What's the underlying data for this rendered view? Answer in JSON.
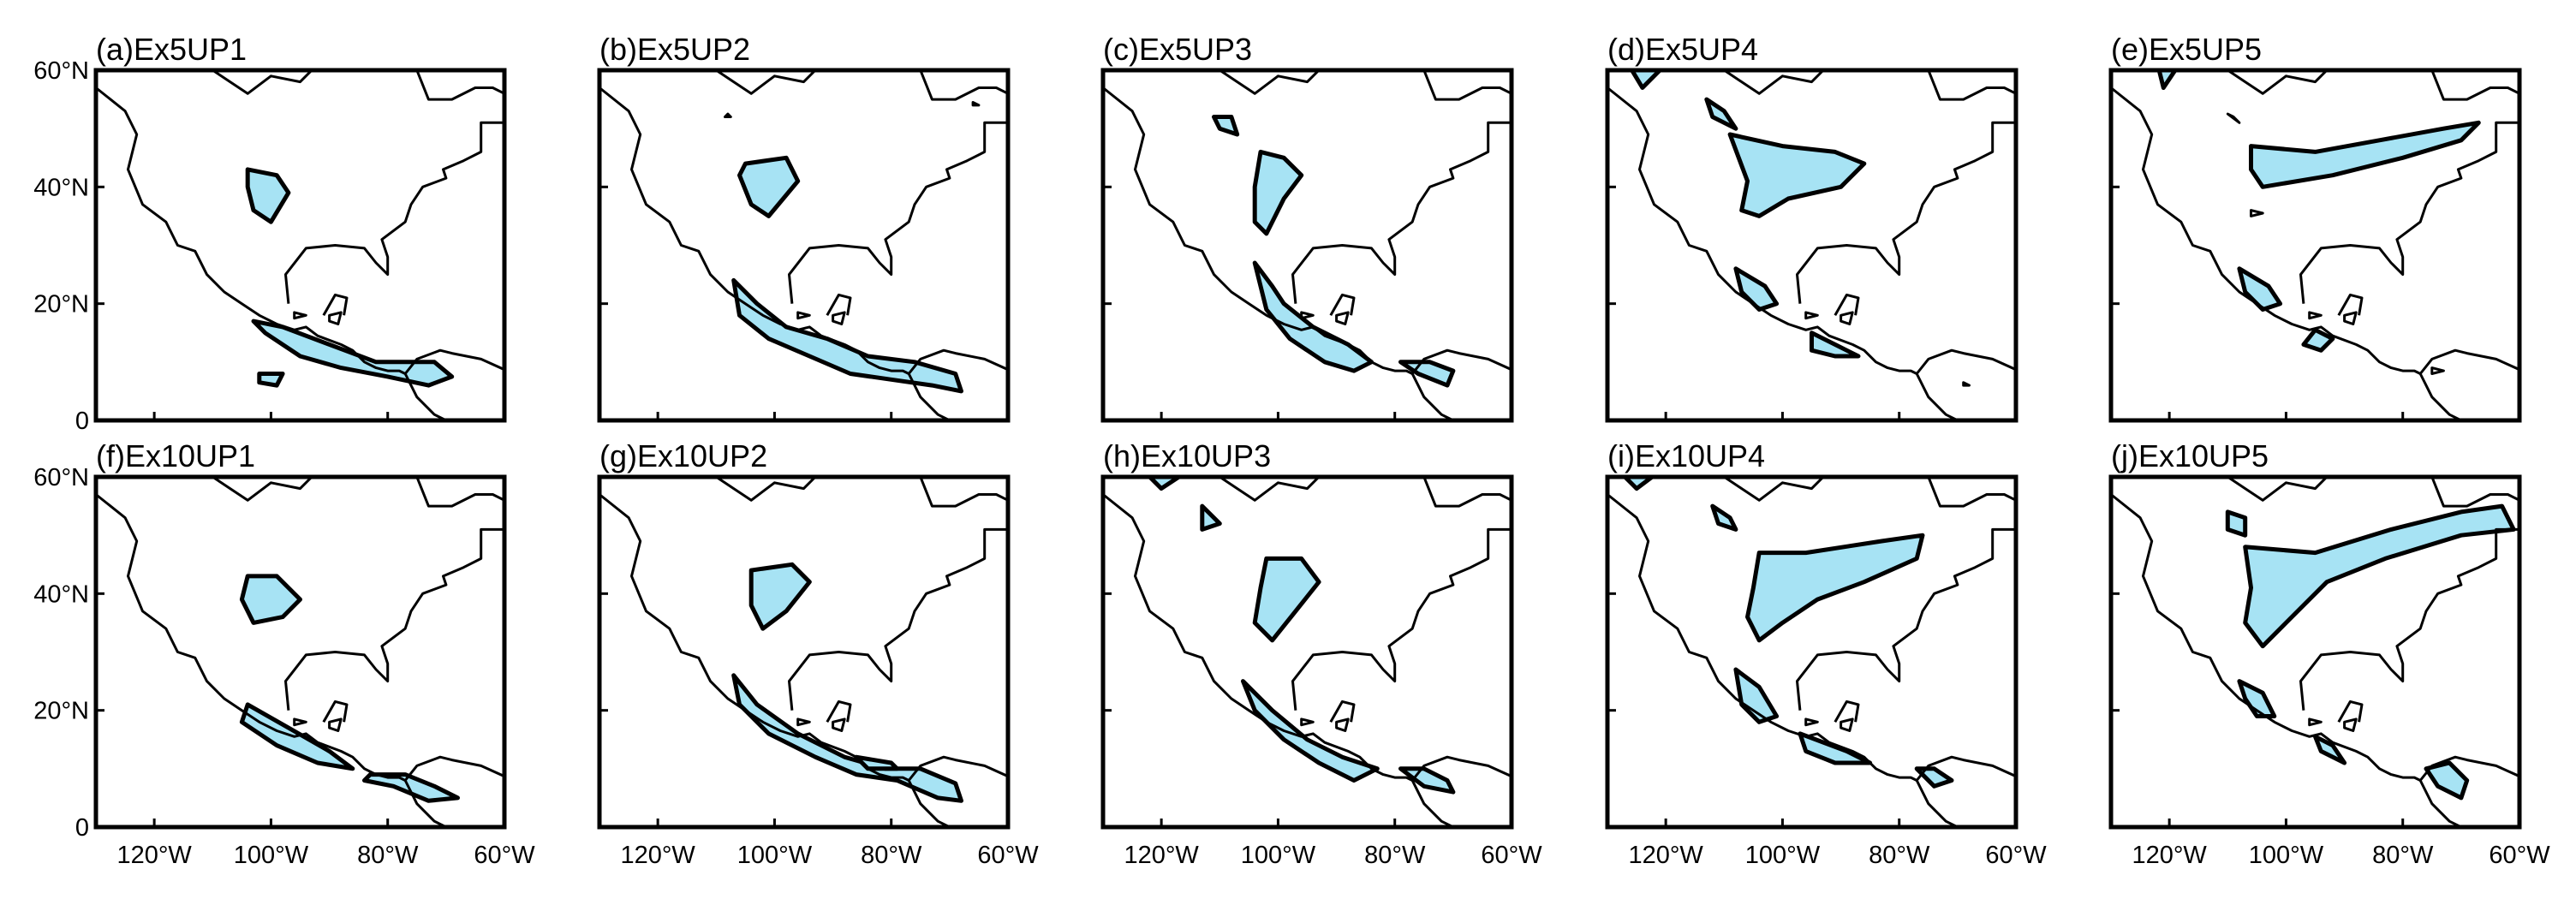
{
  "figure": {
    "fill_color": "#a7e3f4",
    "line_color": "#000000",
    "map_extent": {
      "lon": [
        -130,
        -60
      ],
      "lat": [
        0,
        60
      ]
    },
    "panels": [
      {
        "title": "(a)Ex5UP1"
      },
      {
        "title": "(b)Ex5UP2"
      },
      {
        "title": "(c)Ex5UP3"
      },
      {
        "title": "(d)Ex5UP4"
      },
      {
        "title": "(e)Ex5UP5"
      },
      {
        "title": "(f)Ex10UP1"
      },
      {
        "title": "(g)Ex10UP2"
      },
      {
        "title": "(h)Ex10UP3"
      },
      {
        "title": "(i)Ex10UP4"
      },
      {
        "title": "(j)Ex10UP5"
      }
    ],
    "y_axis": {
      "ticks": [
        {
          "label": "60°N"
        },
        {
          "label": "40°N"
        },
        {
          "label": "20°N"
        },
        {
          "label": "0"
        }
      ]
    },
    "x_axis": {
      "ticks": [
        {
          "label": "120°W"
        },
        {
          "label": "100°W"
        },
        {
          "label": "80°W"
        },
        {
          "label": "60°W"
        }
      ]
    }
  }
}
